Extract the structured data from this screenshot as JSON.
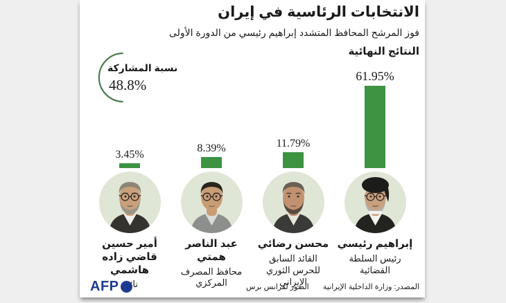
{
  "colors": {
    "page_bg": "#efefef",
    "card_bg": "#ffffff",
    "bar_green": "#3d9342",
    "arc_green": "#4d7c52",
    "afp_blue": "#1e3a8f",
    "text": "#1a1a1a"
  },
  "header": {
    "title": "الانتخابات الرئاسية في إيران",
    "subtitle": "فوز المرشح المحافظ المتشدد إبراهيم رئيسي من الدورة الأولى",
    "results_label": "النتائج النهائية"
  },
  "participation": {
    "label": "نسبة المشاركة",
    "value_label": "48.8%",
    "percent": 48.8
  },
  "chart_data": {
    "type": "bar",
    "title": "النتائج النهائية",
    "categories": [
      "إبراهيم رئيسي",
      "محسن رضائي",
      "عبد الناصر همتي",
      "أمير حسين قاضي زاده هاشمي"
    ],
    "values": [
      61.95,
      11.79,
      8.39,
      3.45
    ],
    "value_labels": [
      "61.95%",
      "11.79%",
      "8.39%",
      "3.45%"
    ],
    "ylim": [
      0,
      62
    ],
    "bar_color": "#3d9342",
    "grid": false,
    "legend": false,
    "value_label_position": "above-bar",
    "layout": "bars right-to-left from highest to lowest, circular portrait under each bar"
  },
  "candidates": [
    {
      "name": "إبراهيم رئيسي",
      "role": "رئيس السلطة القضائية",
      "result": 61.95,
      "result_label": "61.95%",
      "avatar": {
        "bg": "#e0e6d6",
        "skin": "#c9a07d",
        "headwear": "turban",
        "headwear_color": "#1c1c1a",
        "beard": "#b6b0a4",
        "glasses": true,
        "suit": "#23231f",
        "shirt": "#f2f2ee"
      }
    },
    {
      "name": "محسن رضائي",
      "role": "القائد السابق للحرس الثوري الإيراني",
      "result": 11.79,
      "result_label": "11.79%",
      "avatar": {
        "bg": "#e0e6d6",
        "skin": "#c29270",
        "headwear": "hair",
        "headwear_color": "#6b6055",
        "beard": "#5a4b3d",
        "glasses": false,
        "suit": "#3a3a38",
        "shirt": "#e8e4da"
      }
    },
    {
      "name": "عبد الناصر همتي",
      "role": "محافظ المصرف المركزي",
      "result": 8.39,
      "result_label": "8.39%",
      "avatar": {
        "bg": "#e0e6d6",
        "skin": "#c89d76",
        "headwear": "hair",
        "headwear_color": "#2a241e",
        "beard": null,
        "glasses": true,
        "suit": "#8d8f8c",
        "shirt": "#d9dcd9"
      }
    },
    {
      "name": "أمير حسين قاضي زاده هاشمي",
      "role": "نائب",
      "result": 3.45,
      "result_label": "3.45%",
      "avatar": {
        "bg": "#e0e6d6",
        "skin": "#c9a07d",
        "headwear": "hair",
        "headwear_color": "#8c8578",
        "beard": "#9b9589",
        "glasses": true,
        "suit": "#35332f",
        "shirt": "#f0efec"
      }
    }
  ],
  "footer": {
    "afp_label": "AFP",
    "photo_credit": "الصور لفرانس برس",
    "source": "المصدر: وزارة الداخلية الإيرانية"
  }
}
